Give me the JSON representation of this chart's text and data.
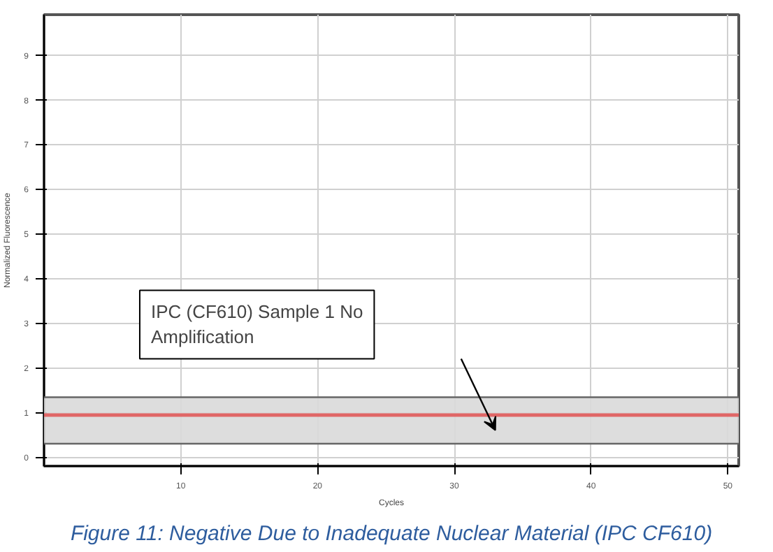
{
  "chart_data": {
    "type": "line",
    "title": "Figure 11: Negative Due to Inadequate Nuclear Material (IPC CF610)",
    "xlabel": "Cycles",
    "ylabel": "Normalized Fluorescence",
    "xlim": [
      0,
      50.8
    ],
    "ylim": [
      -0.2,
      9.9
    ],
    "xticks": [
      10,
      20,
      30,
      40,
      50
    ],
    "yticks": [
      0,
      1,
      2,
      3,
      4,
      5,
      6,
      7,
      8,
      9
    ],
    "grid": true,
    "bands": [
      {
        "axis": "y",
        "from": 0.3,
        "to": 1.34,
        "color": "#d9d9d9"
      }
    ],
    "ref_lines": [
      {
        "axis": "y",
        "value": 1.34,
        "color": "#666666"
      },
      {
        "axis": "y",
        "value": 0.3,
        "color": "#666666"
      },
      {
        "axis": "y",
        "value": 0.94,
        "color": "#e06666"
      }
    ],
    "annotations": [
      "IPC (CF610) Sample 1 No Amplification"
    ]
  }
}
